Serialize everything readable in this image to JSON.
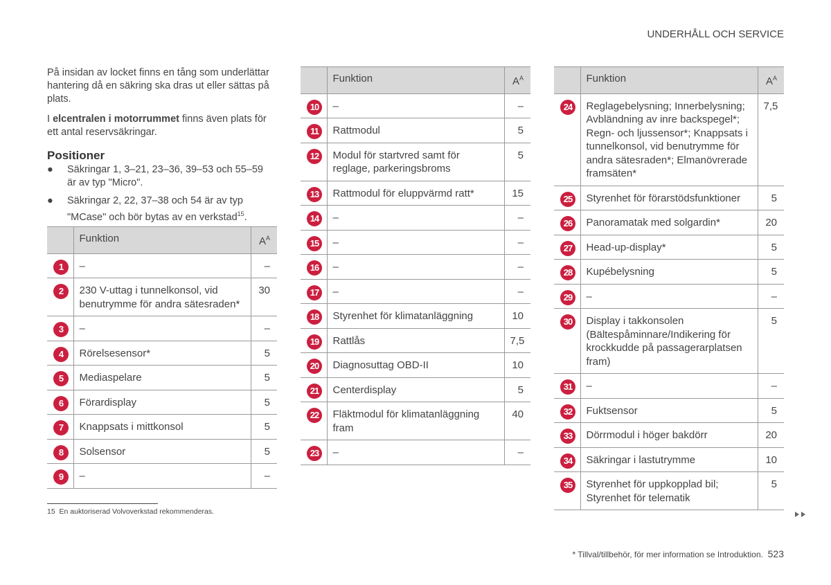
{
  "header": {
    "title": "UNDERHÅLL OCH SERVICE"
  },
  "intro": {
    "paragraph1": "På insidan av locket finns en tång som underlättar hantering då en säkring ska dras ut eller sättas på plats.",
    "paragraph2": {
      "before": "I ",
      "bold": "elcentralen i motorrummet",
      "after": " finns även plats för ett antal reservsäkringar."
    }
  },
  "section": {
    "heading": "Positioner",
    "bullets": [
      {
        "text": "Säkringar 1, 3–21, 23–36, 39–53 och 55–59 är av typ \"Micro\"."
      },
      {
        "text": "Säkringar 2, 22, 37–38 och 54 är av typ \"MCase\" och bör bytas av en verkstad",
        "sup": "15",
        "end": "."
      }
    ]
  },
  "tables": [
    {
      "header": {
        "function": "Funktion",
        "ampere": "A",
        "ampere_sup": "A"
      },
      "rows": [
        {
          "number": 1,
          "function": "–",
          "ampere": "–"
        },
        {
          "number": 2,
          "function": "230 V-uttag i tunnelkonsol, vid benutrymme för andra sätesraden*",
          "ampere": "30"
        },
        {
          "number": 3,
          "function": "–",
          "ampere": "–"
        },
        {
          "number": 4,
          "function": "Rörelsesensor*",
          "ampere": "5"
        },
        {
          "number": 5,
          "function": "Mediaspelare",
          "ampere": "5"
        },
        {
          "number": 6,
          "function": "Förardisplay",
          "ampere": "5"
        },
        {
          "number": 7,
          "function": "Knappsats i mittkonsol",
          "ampere": "5"
        },
        {
          "number": 8,
          "function": "Solsensor",
          "ampere": "5"
        },
        {
          "number": 9,
          "function": "–",
          "ampere": "–"
        }
      ]
    },
    {
      "header": {
        "function": "Funktion",
        "ampere": "A",
        "ampere_sup": "A"
      },
      "rows": [
        {
          "number": 10,
          "function": "–",
          "ampere": "–"
        },
        {
          "number": 11,
          "function": "Rattmodul",
          "ampere": "5"
        },
        {
          "number": 12,
          "function": "Modul för startvred samt för reglage, parkeringsbroms",
          "ampere": "5"
        },
        {
          "number": 13,
          "function": "Rattmodul för eluppvärmd ratt*",
          "ampere": "15"
        },
        {
          "number": 14,
          "function": "–",
          "ampere": "–"
        },
        {
          "number": 15,
          "function": "–",
          "ampere": "–"
        },
        {
          "number": 16,
          "function": "–",
          "ampere": "–"
        },
        {
          "number": 17,
          "function": "–",
          "ampere": "–"
        },
        {
          "number": 18,
          "function": "Styrenhet för klimatanläggning",
          "ampere": "10"
        },
        {
          "number": 19,
          "function": "Rattlås",
          "ampere": "7,5"
        },
        {
          "number": 20,
          "function": "Diagnosuttag OBD-II",
          "ampere": "10"
        },
        {
          "number": 21,
          "function": "Centerdisplay",
          "ampere": "5"
        },
        {
          "number": 22,
          "function": "Fläktmodul för klimatanläggning fram",
          "ampere": "40"
        },
        {
          "number": 23,
          "function": "–",
          "ampere": "–"
        }
      ]
    },
    {
      "header": {
        "function": "Funktion",
        "ampere": "A",
        "ampere_sup": "A"
      },
      "rows": [
        {
          "number": 24,
          "function": "Reglagebelysning; Innerbelysning; Avbländning av inre backspegel*; Regn- och ljussensor*; Knappsats i tunnelkonsol, vid benutrymme för andra sätesraden*; Elmanövrerade framsäten*",
          "ampere": "7,5"
        },
        {
          "number": 25,
          "function": "Styrenhet för förarstödsfunktioner",
          "ampere": "5"
        },
        {
          "number": 26,
          "function": "Panoramatak med solgardin*",
          "ampere": "20"
        },
        {
          "number": 27,
          "function": "Head-up-display*",
          "ampere": "5"
        },
        {
          "number": 28,
          "function": "Kupébelysning",
          "ampere": "5"
        },
        {
          "number": 29,
          "function": "–",
          "ampere": "–"
        },
        {
          "number": 30,
          "function": "Display i takkonsolen (Bältespåminnare/Indikering för krockkudde på passagerarplatsen fram)",
          "ampere": "5"
        },
        {
          "number": 31,
          "function": "–",
          "ampere": "–"
        },
        {
          "number": 32,
          "function": "Fuktsensor",
          "ampere": "5"
        },
        {
          "number": 33,
          "function": "Dörrmodul i höger bakdörr",
          "ampere": "20"
        },
        {
          "number": 34,
          "function": "Säkringar i lastutrymme",
          "ampere": "10"
        },
        {
          "number": 35,
          "function": "Styrenhet för uppkopplad bil; Styrenhet för telematik",
          "ampere": "5"
        }
      ]
    }
  ],
  "footnote": {
    "number": "15",
    "text": "En auktoriserad Volvoverkstad rekommenderas."
  },
  "footer": {
    "note": "* Tillval/tillbehör, för mer information se Introduktion.",
    "page": "523"
  }
}
